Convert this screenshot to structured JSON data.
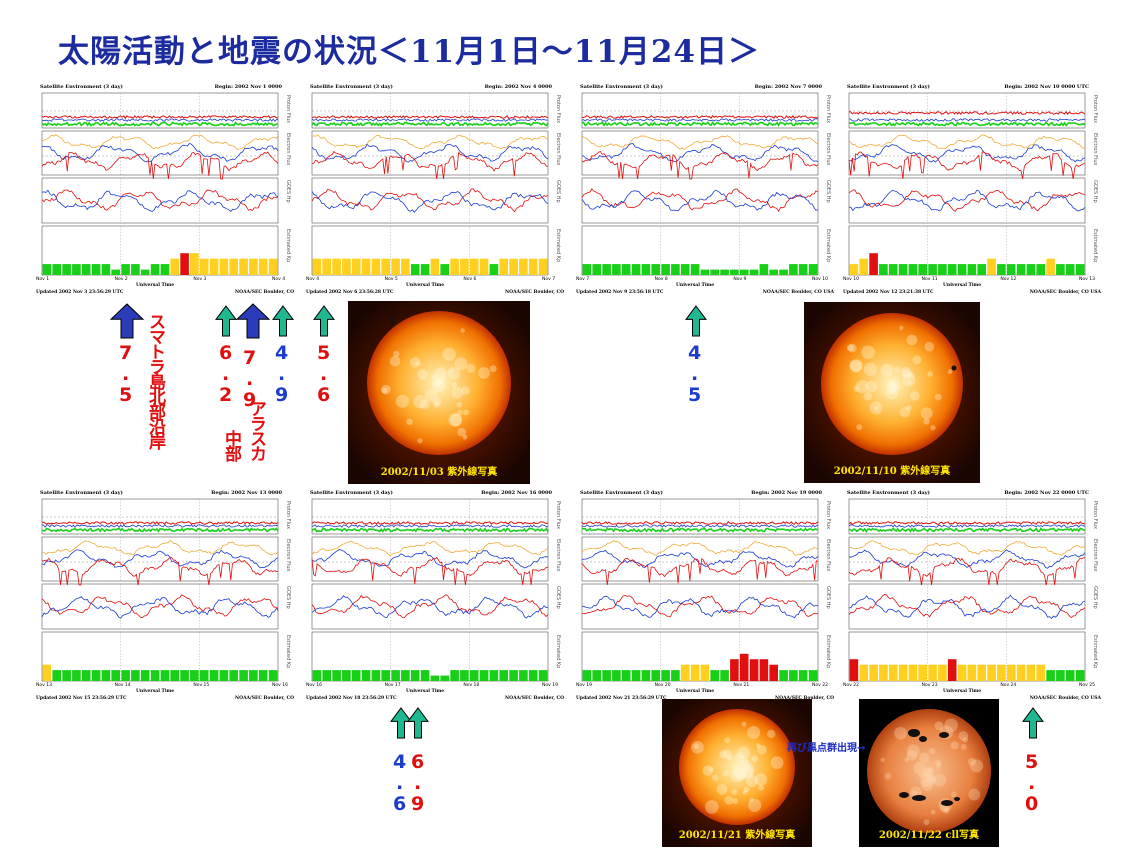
{
  "title": "太陽活動と地震の状況＜11月1日～11月24日＞",
  "colors": {
    "title": "#1c2c9e",
    "red": "#e01010",
    "blue": "#1c3cd0",
    "green": "#18d018",
    "yellow": "#ffd020",
    "orange": "#f0a020",
    "teal_arrow": "#20b890",
    "navy_arrow": "#2a3cb8"
  },
  "y_axis_labels": {
    "proton": "Proton Flux",
    "electron": "Electron Flux",
    "hp": "GOES Hp",
    "kp": "Estimated Kp"
  },
  "panels": [
    {
      "title": "Satellite Environment (3 day)",
      "begin": "Begin: 2002 Nov 1 0000",
      "days": [
        "Nov 1",
        "Nov 2",
        "Nov 3",
        "Nov 4"
      ],
      "xlabel": "Universal Time",
      "updated": "Updated 2002 Nov 3 23:56:29 UTC",
      "credit": "NOAA/SEC Boulder, CO"
    },
    {
      "title": "Satellite Environment (3 day)",
      "begin": "Begin: 2002 Nov 4 0000",
      "days": [
        "Nov 4",
        "Nov 5",
        "Nov 6",
        "Nov 7"
      ],
      "xlabel": "Universal Time",
      "updated": "Updated 2002 Nov 6 23:56:28 UTC",
      "credit": "NOAA/SEC Boulder, CO"
    },
    {
      "title": "Satellite Environment (3 day)",
      "begin": "Begin: 2002 Nov 7 0000",
      "days": [
        "Nov 7",
        "Nov 8",
        "Nov 9",
        "Nov 10"
      ],
      "xlabel": "Universal Time",
      "updated": "Updated 2002 Nov 9 23:56:18 UTC",
      "credit": "NOAA/SEC Boulder, CO USA"
    },
    {
      "title": "Satellite Environment (3 day)",
      "begin": "Begin: 2002 Nov 10 0000 UTC",
      "days": [
        "Nov 10",
        "Nov 11",
        "Nov 12",
        "Nov 13"
      ],
      "xlabel": "Universal Time",
      "updated": "Updated 2002 Nov 12 23:21:38 UTC",
      "credit": "NOAA/SEC Boulder, CO USA"
    },
    {
      "title": "Satellite Environment (3 day)",
      "begin": "Begin: 2002 Nov 13 0000",
      "days": [
        "Nov 13",
        "Nov 14",
        "Nov 15",
        "Nov 16"
      ],
      "xlabel": "Universal Time",
      "updated": "Updated 2002 Nov 15 23:56:29 UTC",
      "credit": "NOAA/SEC Boulder, CO"
    },
    {
      "title": "Satellite Environment (3 day)",
      "begin": "Begin: 2002 Nov 16 0000",
      "days": [
        "Nov 16",
        "Nov 17",
        "Nov 18",
        "Nov 19"
      ],
      "xlabel": "Universal Time",
      "updated": "Updated 2002 Nov 18 23:56:29 UTC",
      "credit": "NOAA/SEC Boulder, CO"
    },
    {
      "title": "Satellite Environment (3 day)",
      "begin": "Begin: 2002 Nov 19 0000",
      "days": [
        "Nov 19",
        "Nov 20",
        "Nov 21",
        "Nov 22"
      ],
      "xlabel": "Universal Time",
      "updated": "Updated 2002 Nov 21 23:56:29 UTC",
      "credit": "NOAA/SEC Boulder, CO"
    },
    {
      "title": "Satellite Environment (3 day)",
      "begin": "Begin: 2002 Nov 22 0000 UTC",
      "days": [
        "Nov 22",
        "Nov 23",
        "Nov 24",
        "Nov 25"
      ],
      "xlabel": "Universal Time",
      "updated": "",
      "credit": "NOAA/SEC Boulder, CO USA"
    }
  ],
  "chart_data": [
    {
      "type": "bar",
      "panel": 1,
      "series_name": "Estimated Kp",
      "ylim": [
        0,
        9
      ],
      "values": [
        2,
        2,
        2,
        2,
        2,
        2,
        2,
        1,
        2,
        2,
        1,
        2,
        2,
        3,
        4,
        4,
        3,
        3,
        3,
        3,
        3,
        3,
        3,
        3
      ],
      "colors": [
        "g",
        "g",
        "g",
        "g",
        "g",
        "g",
        "g",
        "g",
        "g",
        "g",
        "g",
        "g",
        "g",
        "y",
        "r",
        "y",
        "y",
        "y",
        "y",
        "y",
        "y",
        "y",
        "y",
        "y"
      ]
    },
    {
      "type": "bar",
      "panel": 2,
      "series_name": "Estimated Kp",
      "ylim": [
        0,
        9
      ],
      "values": [
        3,
        3,
        3,
        3,
        3,
        3,
        3,
        3,
        3,
        3,
        2,
        2,
        3,
        2,
        3,
        3,
        3,
        3,
        2,
        3,
        3,
        3,
        3,
        3
      ],
      "colors": [
        "y",
        "y",
        "y",
        "y",
        "y",
        "y",
        "y",
        "y",
        "y",
        "y",
        "g",
        "g",
        "y",
        "g",
        "y",
        "y",
        "y",
        "y",
        "g",
        "y",
        "y",
        "y",
        "y",
        "y"
      ]
    },
    {
      "type": "bar",
      "panel": 3,
      "series_name": "Estimated Kp",
      "ylim": [
        0,
        9
      ],
      "values": [
        2,
        2,
        2,
        2,
        2,
        2,
        2,
        2,
        2,
        2,
        2,
        2,
        1,
        1,
        1,
        1,
        1,
        1,
        2,
        1,
        1,
        2,
        2,
        2
      ],
      "colors": [
        "g",
        "g",
        "g",
        "g",
        "g",
        "g",
        "g",
        "g",
        "g",
        "g",
        "g",
        "g",
        "g",
        "g",
        "g",
        "g",
        "g",
        "g",
        "g",
        "g",
        "g",
        "g",
        "g",
        "g"
      ]
    },
    {
      "type": "bar",
      "panel": 4,
      "series_name": "Estimated Kp",
      "ylim": [
        0,
        9
      ],
      "values": [
        2,
        3,
        4,
        2,
        2,
        2,
        2,
        2,
        2,
        2,
        2,
        2,
        2,
        2,
        3,
        2,
        2,
        2,
        2,
        2,
        3,
        2,
        2,
        2
      ],
      "colors": [
        "y",
        "y",
        "r",
        "g",
        "g",
        "g",
        "g",
        "g",
        "g",
        "g",
        "g",
        "g",
        "g",
        "g",
        "y",
        "g",
        "g",
        "g",
        "g",
        "g",
        "y",
        "g",
        "g",
        "g"
      ]
    },
    {
      "type": "bar",
      "panel": 5,
      "series_name": "Estimated Kp",
      "ylim": [
        0,
        9
      ],
      "values": [
        3,
        2,
        2,
        2,
        2,
        2,
        2,
        2,
        2,
        2,
        2,
        2,
        2,
        2,
        2,
        2,
        2,
        2,
        2,
        2,
        2,
        2,
        2,
        2
      ],
      "colors": [
        "y",
        "g",
        "g",
        "g",
        "g",
        "g",
        "g",
        "g",
        "g",
        "g",
        "g",
        "g",
        "g",
        "g",
        "g",
        "g",
        "g",
        "g",
        "g",
        "g",
        "g",
        "g",
        "g",
        "g"
      ]
    },
    {
      "type": "bar",
      "panel": 6,
      "series_name": "Estimated Kp",
      "ylim": [
        0,
        9
      ],
      "values": [
        2,
        2,
        2,
        2,
        2,
        2,
        2,
        2,
        2,
        2,
        2,
        2,
        1,
        1,
        2,
        2,
        2,
        2,
        2,
        2,
        2,
        2,
        2,
        2
      ],
      "colors": [
        "g",
        "g",
        "g",
        "g",
        "g",
        "g",
        "g",
        "g",
        "g",
        "g",
        "g",
        "g",
        "g",
        "g",
        "g",
        "g",
        "g",
        "g",
        "g",
        "g",
        "g",
        "g",
        "g",
        "g"
      ]
    },
    {
      "type": "bar",
      "panel": 7,
      "series_name": "Estimated Kp",
      "ylim": [
        0,
        9
      ],
      "values": [
        2,
        2,
        2,
        2,
        2,
        2,
        2,
        2,
        2,
        2,
        3,
        3,
        3,
        2,
        2,
        4,
        5,
        4,
        4,
        3,
        2,
        2,
        2,
        2
      ],
      "colors": [
        "g",
        "g",
        "g",
        "g",
        "g",
        "g",
        "g",
        "g",
        "g",
        "g",
        "y",
        "y",
        "y",
        "g",
        "g",
        "r",
        "r",
        "r",
        "r",
        "r",
        "g",
        "g",
        "g",
        "g"
      ]
    },
    {
      "type": "bar",
      "panel": 8,
      "series_name": "Estimated Kp",
      "ylim": [
        0,
        9
      ],
      "values": [
        4,
        3,
        3,
        3,
        3,
        3,
        3,
        3,
        3,
        3,
        4,
        3,
        3,
        3,
        3,
        3,
        3,
        3,
        3,
        3,
        2,
        2,
        2,
        2
      ],
      "colors": [
        "r",
        "y",
        "y",
        "y",
        "y",
        "y",
        "y",
        "y",
        "y",
        "y",
        "r",
        "y",
        "y",
        "y",
        "y",
        "y",
        "y",
        "y",
        "y",
        "y",
        "g",
        "g",
        "g",
        "g"
      ]
    }
  ],
  "earthquakes": [
    {
      "id": "eq1",
      "mag_chars": [
        "7",
        ".",
        "5"
      ],
      "color": "red",
      "place": "スマトラ島北部沿岸",
      "arrow": "navy"
    },
    {
      "id": "eq2",
      "mag_chars": [
        "6",
        ".",
        "2"
      ],
      "color": "red",
      "place": "中部",
      "arrow": "teal"
    },
    {
      "id": "eq3",
      "mag_chars": [
        "7",
        ".",
        "9"
      ],
      "color": "red",
      "place": "アラスカ",
      "arrow": "navy"
    },
    {
      "id": "eq4",
      "mag_chars": [
        "4",
        ".",
        "9"
      ],
      "color": "blue",
      "place": "",
      "arrow": "teal"
    },
    {
      "id": "eq5",
      "mag_chars": [
        "5",
        ".",
        "6"
      ],
      "color": "red",
      "place": "",
      "arrow": "teal"
    },
    {
      "id": "eq6",
      "mag_chars": [
        "4",
        ".",
        "5"
      ],
      "color": "blue",
      "place": "",
      "arrow": "teal"
    },
    {
      "id": "eq7",
      "mag_chars": [
        "4",
        ".",
        "6"
      ],
      "color": "blue",
      "place": "",
      "arrow": "teal"
    },
    {
      "id": "eq8",
      "mag_chars": [
        "6",
        ".",
        "9"
      ],
      "color": "red",
      "place": "",
      "arrow": "teal"
    },
    {
      "id": "eq9",
      "mag_chars": [
        "5",
        ".",
        "0"
      ],
      "color": "red",
      "place": "",
      "arrow": "teal"
    }
  ],
  "images": [
    {
      "id": "sun1",
      "caption": "2002/11/03 紫外線写真",
      "type": "euv"
    },
    {
      "id": "sun2",
      "caption": "2002/11/10 紫外線写真",
      "type": "euv"
    },
    {
      "id": "sun3",
      "caption": "2002/11/21 紫外線写真",
      "type": "euv"
    },
    {
      "id": "sun4",
      "caption": "2002/11/22 cll写真",
      "type": "spots"
    }
  ],
  "annotation": "再び黒点群出現→"
}
